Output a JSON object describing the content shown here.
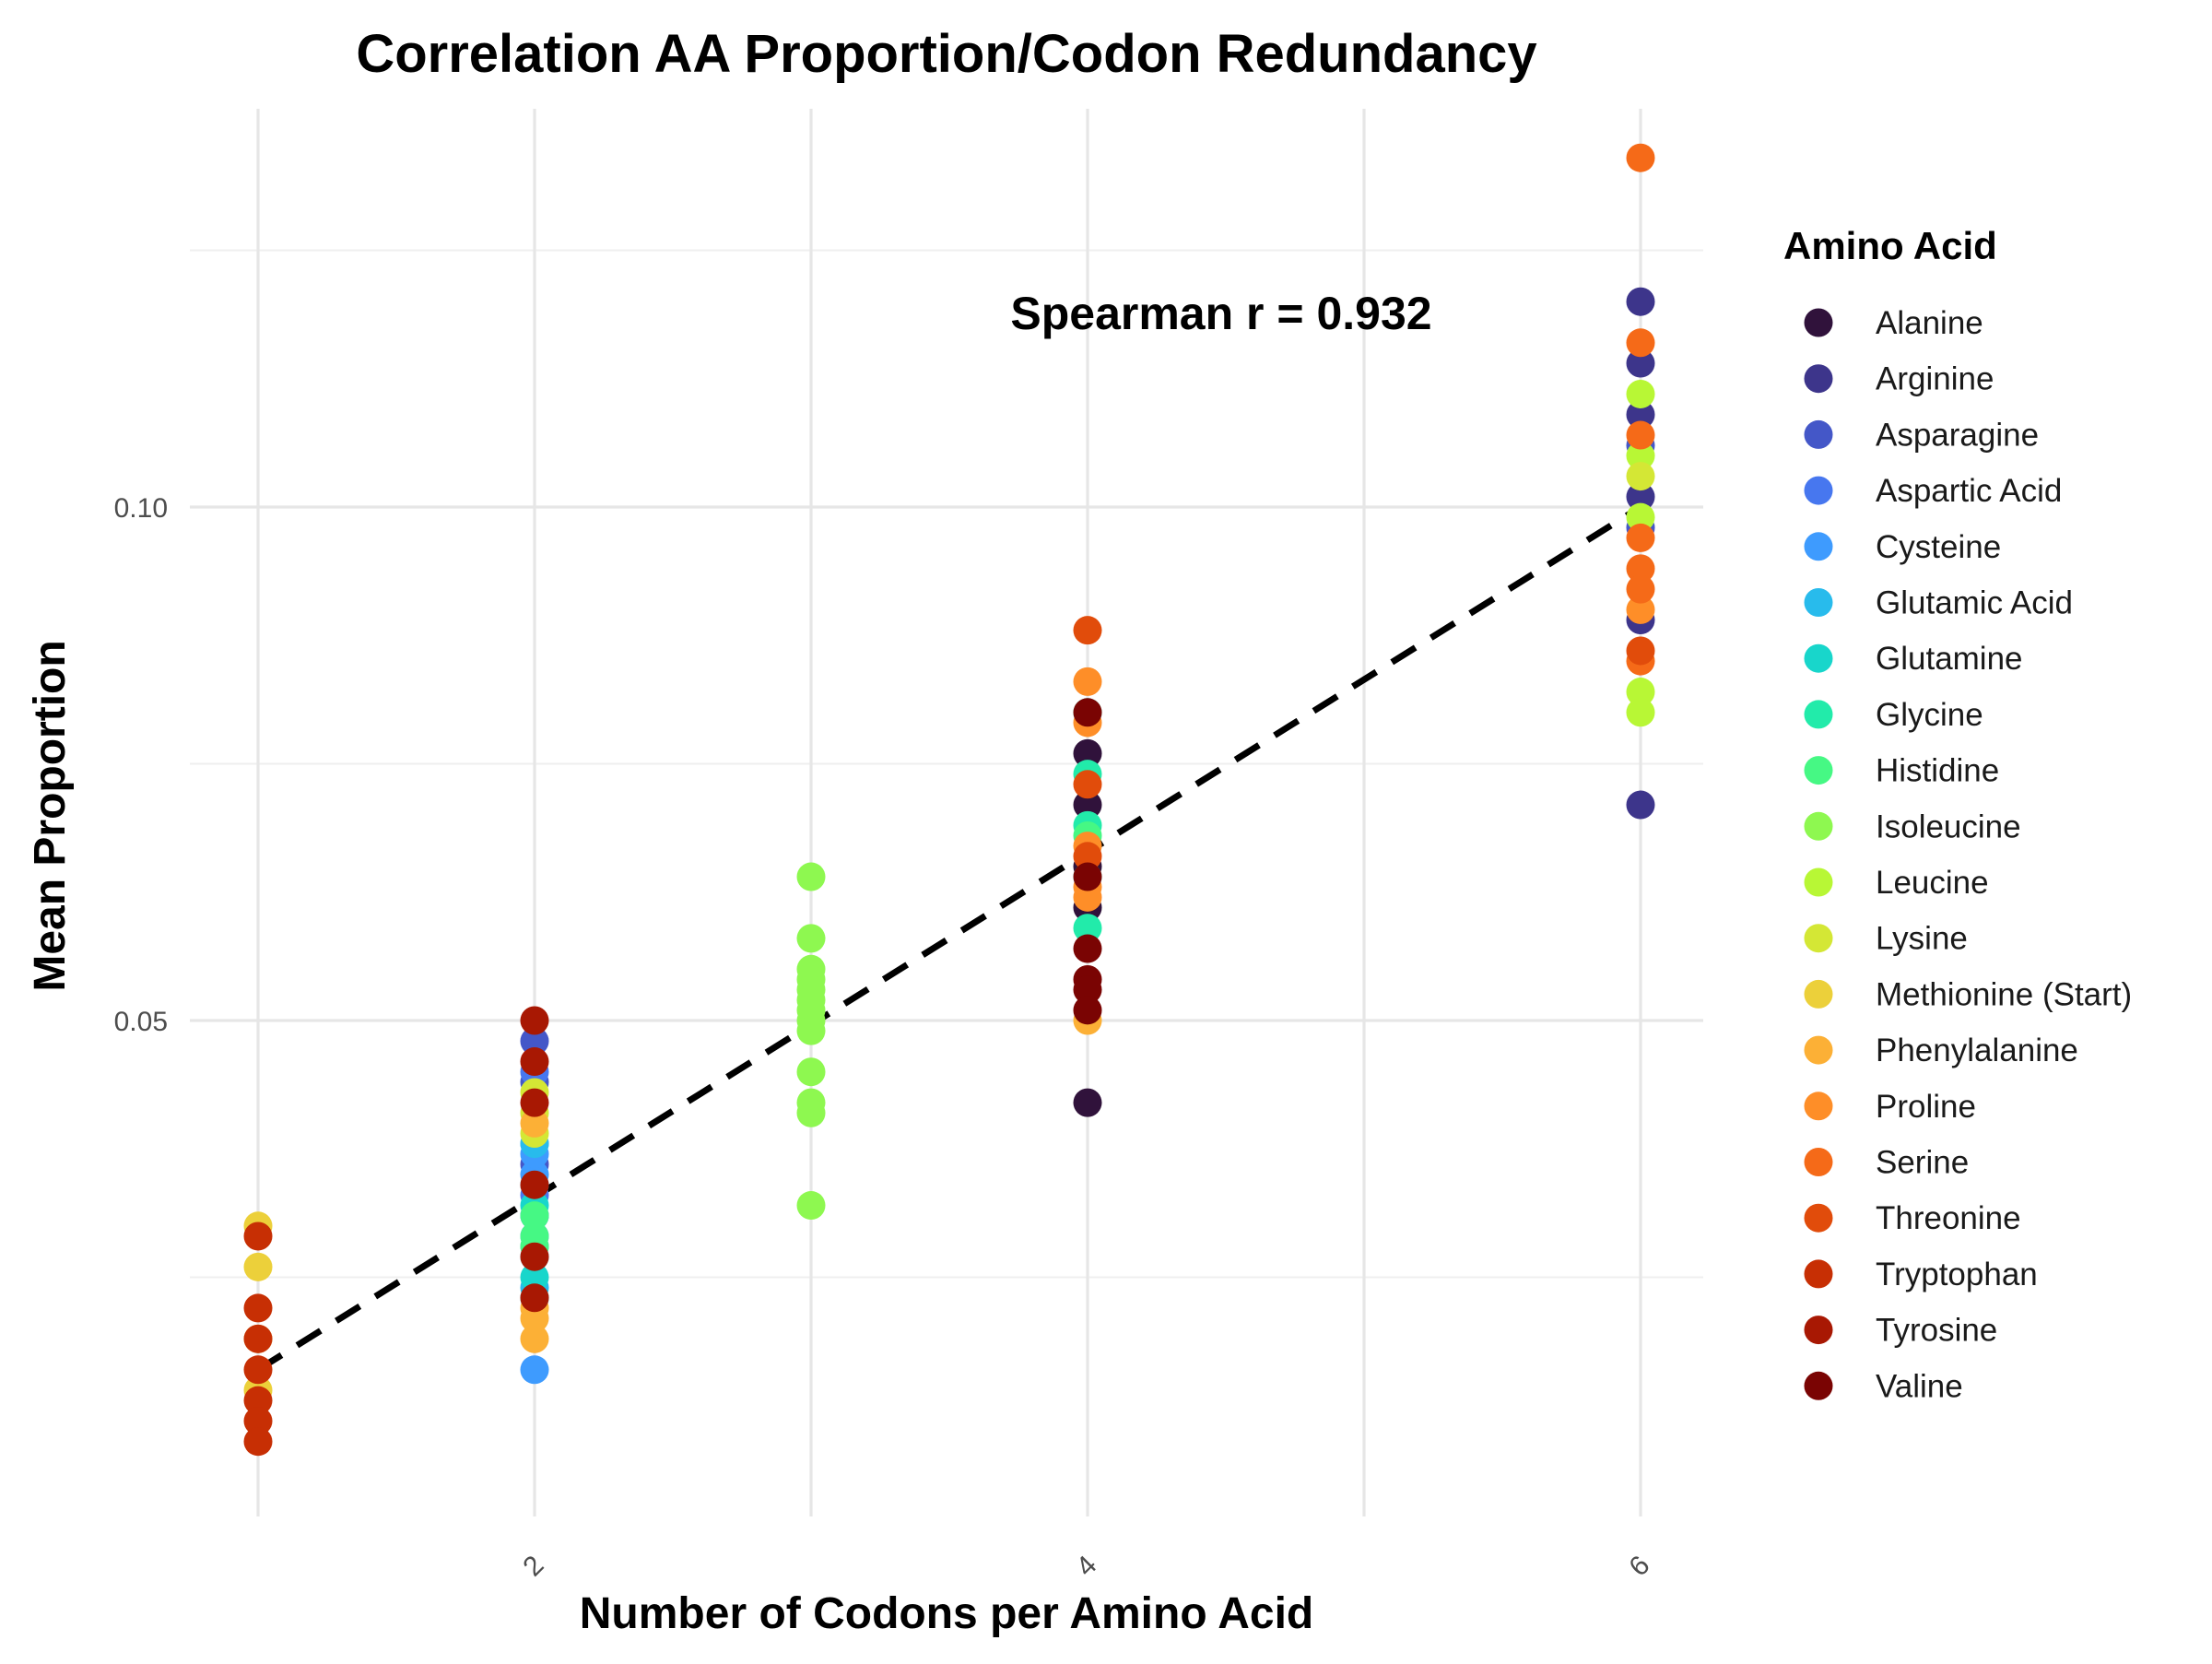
{
  "chart_data": {
    "type": "scatter",
    "title": "Correlation AA Proportion/Codon Redundancy",
    "xlabel": "Number of Codons per Amino Acid",
    "ylabel": "Mean Proportion",
    "xlim": [
      1,
      6
    ],
    "ylim": [
      0.006,
      0.136
    ],
    "x_ticks": [
      {
        "value": 2,
        "label": "2"
      },
      {
        "value": 4,
        "label": "4"
      },
      {
        "value": 6,
        "label": "6"
      }
    ],
    "y_ticks": [
      {
        "value": 0.05,
        "label": "0.05"
      },
      {
        "value": 0.1,
        "label": "0.10"
      }
    ],
    "grid": true,
    "legend_title": "Amino Acid",
    "legend_position": "right",
    "annotation": "Spearman r = 0.932",
    "trend_line": {
      "style": "dashed",
      "color": "#000000",
      "x": [
        1,
        6
      ],
      "y": [
        0.016,
        0.1
      ]
    },
    "series": [
      {
        "name": "Alanine",
        "color": "#30123b",
        "points": [
          [
            4,
            0.042
          ],
          [
            4,
            0.076
          ],
          [
            4,
            0.071
          ],
          [
            4,
            0.065
          ],
          [
            4,
            0.061
          ]
        ]
      },
      {
        "name": "Arginine",
        "color": "#3d358b",
        "points": [
          [
            6,
            0.071
          ],
          [
            6,
            0.12
          ],
          [
            6,
            0.114
          ],
          [
            6,
            0.109
          ],
          [
            6,
            0.101
          ],
          [
            6,
            0.089
          ]
        ]
      },
      {
        "name": "Asparagine",
        "color": "#4457c8",
        "points": [
          [
            2,
            0.048
          ],
          [
            2,
            0.044
          ],
          [
            2,
            0.036
          ],
          [
            2,
            0.031
          ],
          [
            6,
            0.106
          ],
          [
            6,
            0.098
          ]
        ]
      },
      {
        "name": "Aspartic Acid",
        "color": "#4777ef",
        "points": [
          [
            2,
            0.045
          ],
          [
            2,
            0.038
          ],
          [
            2,
            0.033
          ]
        ]
      },
      {
        "name": "Cysteine",
        "color": "#3e9bfe",
        "points": [
          [
            2,
            0.016
          ],
          [
            2,
            0.035
          ],
          [
            2,
            0.029
          ],
          [
            2,
            0.037
          ]
        ]
      },
      {
        "name": "Glutamic Acid",
        "color": "#28bbec",
        "points": [
          [
            2,
            0.038
          ],
          [
            2,
            0.034
          ],
          [
            2,
            0.031
          ],
          [
            2,
            0.027
          ],
          [
            2,
            0.024
          ]
        ]
      },
      {
        "name": "Glutamine",
        "color": "#18d6cb",
        "points": [
          [
            2,
            0.032
          ],
          [
            2,
            0.028
          ],
          [
            2,
            0.025
          ],
          [
            2,
            0.023
          ]
        ]
      },
      {
        "name": "Glycine",
        "color": "#22ebaa",
        "points": [
          [
            4,
            0.08
          ],
          [
            4,
            0.074
          ],
          [
            4,
            0.069
          ],
          [
            4,
            0.064
          ],
          [
            4,
            0.059
          ]
        ]
      },
      {
        "name": "Histidine",
        "color": "#46f884",
        "points": [
          [
            2,
            0.031
          ],
          [
            2,
            0.029
          ],
          [
            2,
            0.028
          ],
          [
            4,
            0.068
          ]
        ]
      },
      {
        "name": "Isoleucine",
        "color": "#8ef850",
        "points": [
          [
            3,
            0.064
          ],
          [
            3,
            0.058
          ],
          [
            3,
            0.055
          ],
          [
            3,
            0.054
          ],
          [
            3,
            0.053
          ],
          [
            3,
            0.052
          ],
          [
            3,
            0.051
          ],
          [
            3,
            0.05
          ],
          [
            3,
            0.049
          ],
          [
            3,
            0.045
          ],
          [
            3,
            0.042
          ],
          [
            3,
            0.041
          ],
          [
            3,
            0.032
          ]
        ]
      },
      {
        "name": "Leucine",
        "color": "#b8f735",
        "points": [
          [
            6,
            0.111
          ],
          [
            6,
            0.105
          ],
          [
            6,
            0.099
          ],
          [
            6,
            0.082
          ],
          [
            6,
            0.08
          ]
        ]
      },
      {
        "name": "Lysine",
        "color": "#d4e735",
        "points": [
          [
            2,
            0.043
          ],
          [
            2,
            0.041
          ],
          [
            2,
            0.039
          ],
          [
            6,
            0.103
          ]
        ]
      },
      {
        "name": "Methionine (Start)",
        "color": "#ecd03a",
        "points": [
          [
            1,
            0.03
          ],
          [
            1,
            0.026
          ],
          [
            1,
            0.019
          ],
          [
            1,
            0.014
          ]
        ]
      },
      {
        "name": "Phenylalanine",
        "color": "#fcb036",
        "points": [
          [
            2,
            0.04
          ],
          [
            2,
            0.022
          ],
          [
            2,
            0.019
          ],
          [
            2,
            0.021
          ],
          [
            4,
            0.05
          ]
        ]
      },
      {
        "name": "Proline",
        "color": "#fe8e28",
        "points": [
          [
            4,
            0.083
          ],
          [
            4,
            0.079
          ],
          [
            4,
            0.067
          ],
          [
            4,
            0.063
          ],
          [
            4,
            0.062
          ],
          [
            6,
            0.09
          ]
        ]
      },
      {
        "name": "Serine",
        "color": "#f56a18",
        "points": [
          [
            6,
            0.134
          ],
          [
            6,
            0.116
          ],
          [
            6,
            0.107
          ],
          [
            6,
            0.097
          ],
          [
            6,
            0.094
          ],
          [
            6,
            0.092
          ],
          [
            6,
            0.085
          ]
        ]
      },
      {
        "name": "Threonine",
        "color": "#e14c0b",
        "points": [
          [
            4,
            0.088
          ],
          [
            4,
            0.073
          ],
          [
            4,
            0.066
          ],
          [
            6,
            0.086
          ]
        ]
      },
      {
        "name": "Tryptophan",
        "color": "#c72f04",
        "points": [
          [
            1,
            0.029
          ],
          [
            1,
            0.022
          ],
          [
            1,
            0.019
          ],
          [
            1,
            0.016
          ],
          [
            1,
            0.013
          ],
          [
            1,
            0.011
          ],
          [
            1,
            0.009
          ]
        ]
      },
      {
        "name": "Tyrosine",
        "color": "#a81803",
        "points": [
          [
            2,
            0.05
          ],
          [
            2,
            0.046
          ],
          [
            2,
            0.042
          ],
          [
            2,
            0.034
          ],
          [
            2,
            0.027
          ],
          [
            2,
            0.023
          ]
        ]
      },
      {
        "name": "Valine",
        "color": "#7a0403",
        "points": [
          [
            4,
            0.08
          ],
          [
            4,
            0.064
          ],
          [
            4,
            0.057
          ],
          [
            4,
            0.054
          ],
          [
            4,
            0.053
          ],
          [
            4,
            0.051
          ]
        ]
      }
    ]
  }
}
